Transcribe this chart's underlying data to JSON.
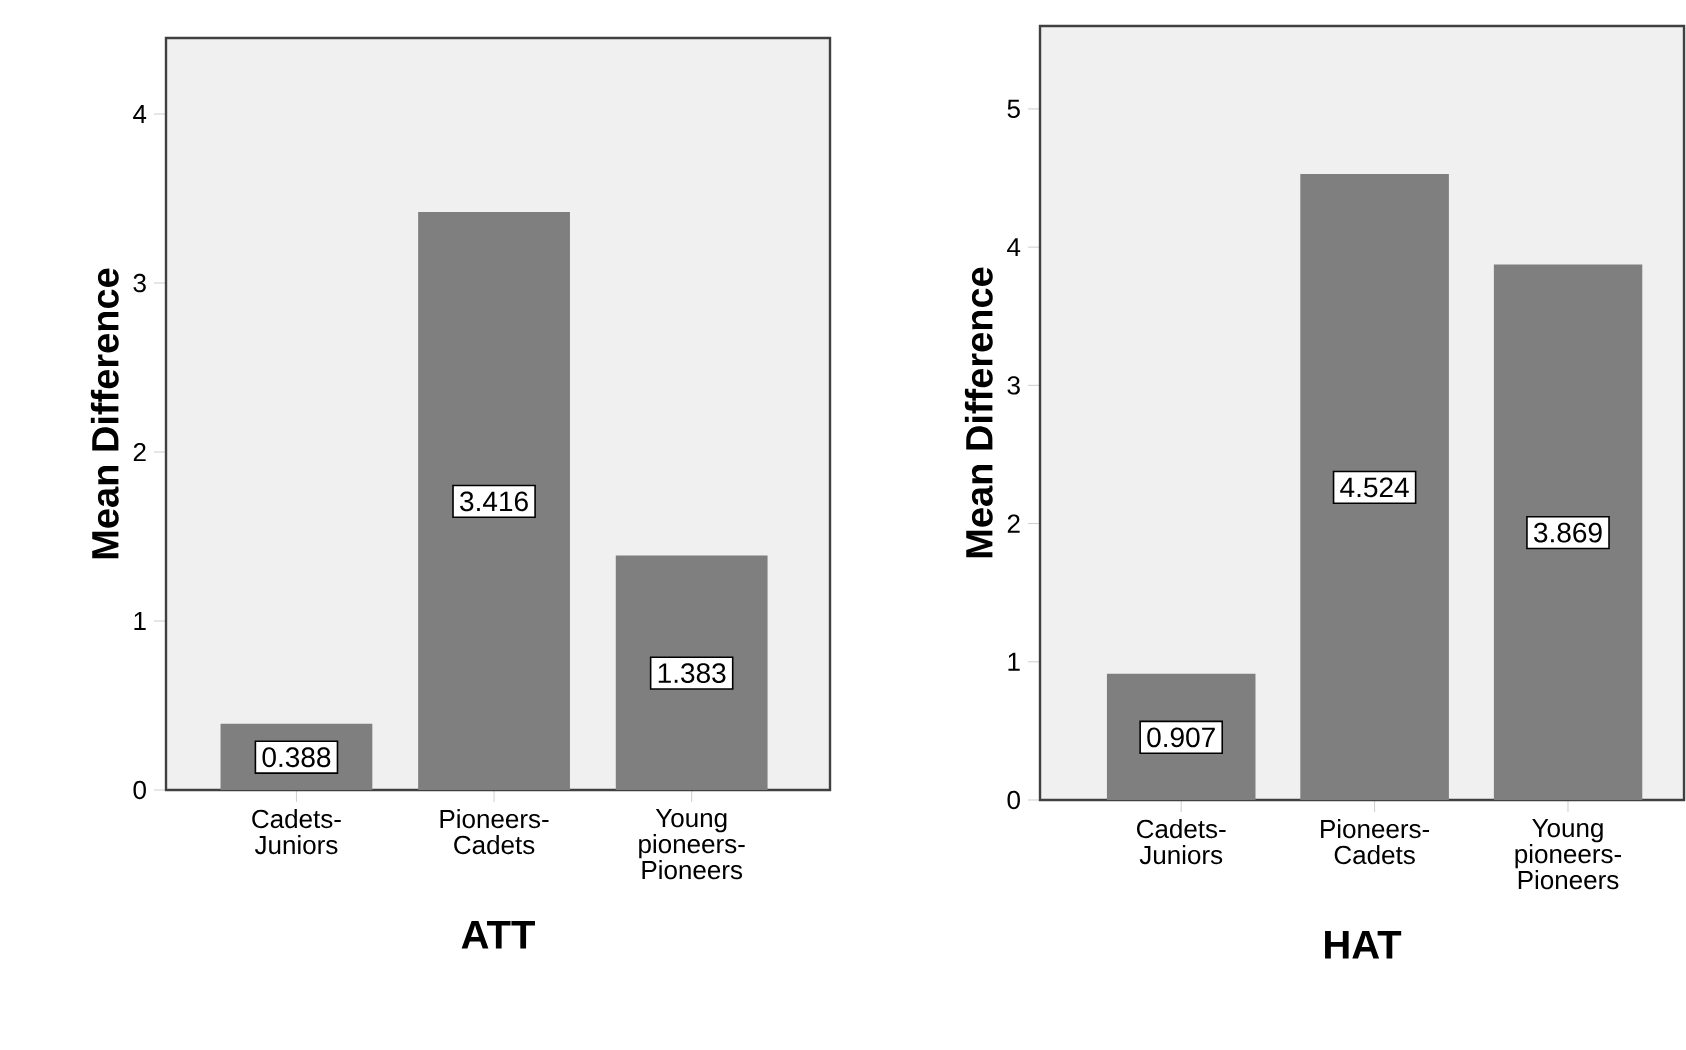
{
  "chart_data": [
    {
      "type": "bar",
      "xlabel": "ATT",
      "ylabel": "Mean Difference",
      "categories": [
        "Cadets-Juniors",
        "Pioneers-Cadets",
        "Young pioneers-Pioneers"
      ],
      "values": [
        0.388,
        3.416,
        1.383
      ],
      "color": "#7f7f7f",
      "ylim": [
        0,
        4.45
      ],
      "yticks": [
        0,
        1,
        2,
        3,
        4
      ],
      "data_labels": true
    },
    {
      "type": "bar",
      "xlabel": "HAT",
      "ylabel": "Mean Difference",
      "categories": [
        "Cadets-Juniors",
        "Pioneers-Cadets",
        "Young pioneers-Pioneers"
      ],
      "values": [
        0.907,
        4.524,
        3.869
      ],
      "color": "#7f7f7f",
      "ylim": [
        0,
        5.6
      ],
      "yticks": [
        0,
        1,
        2,
        3,
        4,
        5
      ],
      "data_labels": true
    }
  ]
}
